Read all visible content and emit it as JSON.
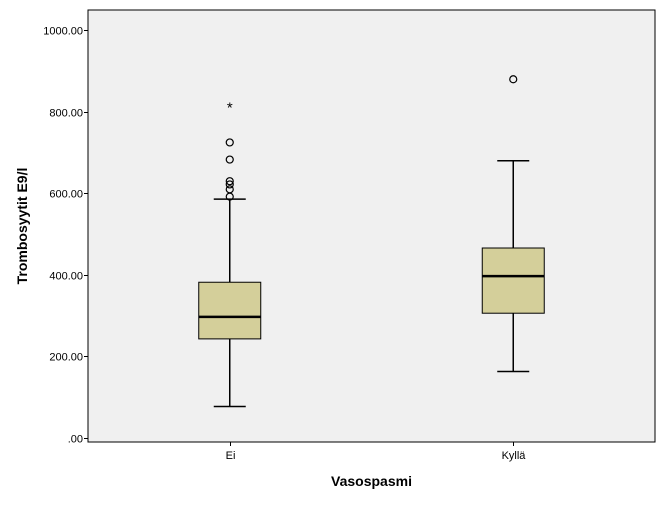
{
  "chart_data": {
    "type": "boxplot",
    "xlabel": "Vasospasmi",
    "ylabel": "Trombosyytit E9/l",
    "ylim": [
      -10,
      1050
    ],
    "yticks": [
      {
        "value": 0,
        "label": ".00"
      },
      {
        "value": 200,
        "label": "200.00"
      },
      {
        "value": 400,
        "label": "400.00"
      },
      {
        "value": 600,
        "label": "600.00"
      },
      {
        "value": 800,
        "label": "800.00"
      },
      {
        "value": 1000,
        "label": "1000.00"
      }
    ],
    "grid": false,
    "categories": [
      "Ei",
      "Kyllä"
    ],
    "boxes": [
      {
        "category": "Ei",
        "whisker_low": 77,
        "q1": 243,
        "median": 297,
        "q3": 382,
        "whisker_high": 586,
        "outliers": [
          592,
          610,
          622,
          630,
          683,
          725
        ],
        "extremes": [
          813
        ]
      },
      {
        "category": "Kyllä",
        "whisker_low": 163,
        "q1": 306,
        "median": 397,
        "q3": 466,
        "whisker_high": 680,
        "outliers": [
          880
        ],
        "extremes": []
      }
    ],
    "colors": {
      "plot_background": "#f0f0f0",
      "box_fill": "#d4cf9a",
      "line": "#000000",
      "page_background": "#ffffff"
    }
  }
}
